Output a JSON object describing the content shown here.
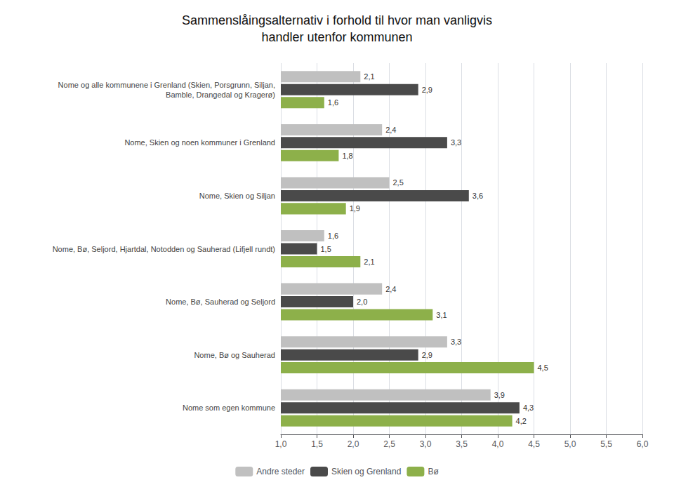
{
  "chart_data": {
    "type": "bar",
    "orientation": "horizontal",
    "title": "Sammenslåingsalternativ i forhold til hvor man vanligvis\nhandler utenfor kommunen",
    "categories": [
      "Nome og alle kommunene i Grenland (Skien, Porsgrunn, Siljan,\nBamble, Drangedal og Kragerø)",
      "Nome, Skien og noen kommuner i Grenland",
      "Nome, Skien og Siljan",
      "Nome, Bø, Seljord, Hjartdal, Notodden og Sauherad (Lifjell rundt)",
      "Nome, Bø, Sauherad og Seljord",
      "Nome, Bø og Sauherad",
      "Nome som egen kommune"
    ],
    "series": [
      {
        "name": "Andre steder",
        "color": "#c0c0c0",
        "values": [
          2.1,
          2.4,
          2.5,
          1.6,
          2.4,
          3.3,
          3.9
        ],
        "value_labels": [
          "2,1",
          "2,4",
          "2,5",
          "1,6",
          "2,4",
          "3,3",
          "3,9"
        ]
      },
      {
        "name": "Skien og Grenland",
        "color": "#4a4a4a",
        "values": [
          2.9,
          3.3,
          3.6,
          1.5,
          2.0,
          2.9,
          4.3
        ],
        "value_labels": [
          "2,9",
          "3,3",
          "3,6",
          "1,5",
          "2,0",
          "2,9",
          "4,3"
        ]
      },
      {
        "name": "Bø",
        "color": "#8db04a",
        "values": [
          1.6,
          1.8,
          1.9,
          2.1,
          3.1,
          4.5,
          4.2
        ],
        "value_labels": [
          "1,6",
          "1,8",
          "1,9",
          "2,1",
          "3,1",
          "4,5",
          "4,2"
        ]
      }
    ],
    "xlim": [
      1.0,
      6.0
    ],
    "xticks": [
      {
        "value": 1.0,
        "label": "1,0"
      },
      {
        "value": 1.5,
        "label": "1,5"
      },
      {
        "value": 2.0,
        "label": "2,0"
      },
      {
        "value": 2.5,
        "label": "2,5"
      },
      {
        "value": 3.0,
        "label": "3,0"
      },
      {
        "value": 3.5,
        "label": "3,5"
      },
      {
        "value": 4.0,
        "label": "4,0"
      },
      {
        "value": 4.5,
        "label": "4,5"
      },
      {
        "value": 5.0,
        "label": "5,0"
      },
      {
        "value": 5.5,
        "label": "5,5"
      },
      {
        "value": 6.0,
        "label": "6,0"
      }
    ],
    "grid": true,
    "legend": "bottom",
    "data_labels": true
  }
}
